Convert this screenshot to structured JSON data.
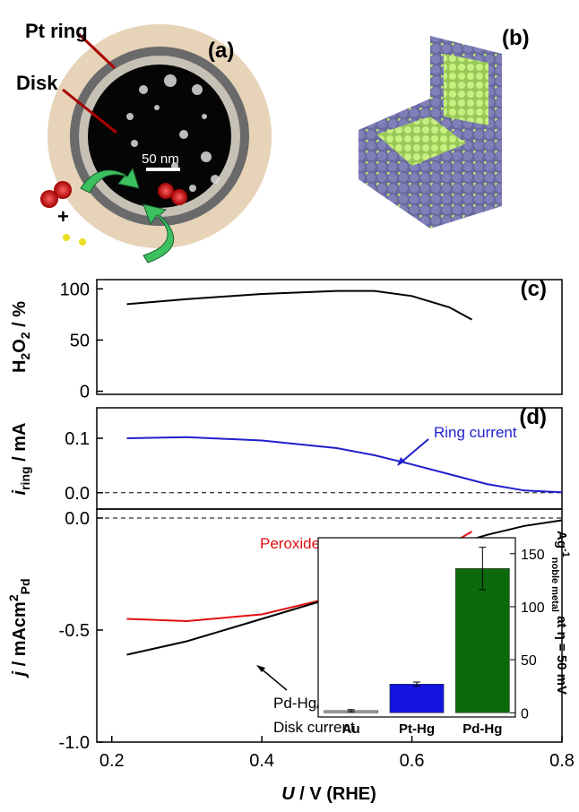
{
  "panel_a": {
    "ring_label": "Pt ring",
    "disk_label": "Disk",
    "scale_label": "50 nm",
    "plus": "+",
    "panel_label": "(a)"
  },
  "panel_b": {
    "panel_label": "(b)"
  },
  "chart_data": [
    {
      "type": "line",
      "panel_label": "(c)",
      "ylabel_parts": [
        "H",
        "2",
        "O",
        "2",
        " / %"
      ],
      "x": [
        0.22,
        0.3,
        0.4,
        0.5,
        0.55,
        0.6,
        0.65,
        0.68
      ],
      "series": [
        {
          "color": "#000000",
          "values": [
            85,
            90,
            95,
            98,
            98,
            93,
            82,
            70
          ]
        }
      ],
      "xlim": [
        0.18,
        0.8
      ],
      "ylim": [
        -3,
        109
      ],
      "yticks": [
        0,
        50,
        100
      ]
    },
    {
      "type": "line",
      "panel_label": "(d)",
      "ylabel_parts": [
        "i",
        "ring",
        " / mA"
      ],
      "annotation": "Ring current",
      "x": [
        0.22,
        0.3,
        0.4,
        0.5,
        0.55,
        0.6,
        0.65,
        0.7,
        0.75,
        0.8
      ],
      "series": [
        {
          "color": "#1f1fcc",
          "values": [
            0.1,
            0.102,
            0.096,
            0.082,
            0.069,
            0.052,
            0.034,
            0.016,
            0.004,
            0.001
          ]
        }
      ],
      "xlim": [
        0.18,
        0.8
      ],
      "ylim": [
        -0.03,
        0.156
      ],
      "yticks": [
        {
          "value": 0,
          "label": "0.0"
        },
        0.1
      ],
      "zero_line": "dashed"
    },
    {
      "type": "line",
      "ylabel_parts": [
        "j",
        " / mAcm",
        "2",
        "Pd"
      ],
      "xlabel_parts": [
        "U",
        " / V (RHE)"
      ],
      "annotations": [
        "Peroxide current",
        "Pd-Hg/C",
        "Disk current"
      ],
      "x": [
        0.22,
        0.3,
        0.4,
        0.5,
        0.55,
        0.6,
        0.65,
        0.68,
        0.7,
        0.75,
        0.8
      ],
      "series": [
        {
          "color": "#e01010",
          "values": [
            -0.45,
            -0.46,
            -0.43,
            -0.35,
            -0.29,
            -0.21,
            -0.12,
            -0.06,
            null,
            null,
            null
          ]
        },
        {
          "color": "#000000",
          "values": [
            -0.61,
            -0.55,
            -0.45,
            -0.35,
            -0.29,
            -0.21,
            -0.13,
            -0.095,
            -0.075,
            -0.035,
            -0.01
          ]
        }
      ],
      "xlim": [
        0.18,
        0.8
      ],
      "ylim": [
        -1.0,
        0.04
      ],
      "yticks": [
        {
          "value": -1,
          "label": "-1.0"
        },
        -0.5,
        {
          "value": 0,
          "label": "0.0"
        }
      ],
      "xticks": [
        0.2,
        0.4,
        0.6,
        0.8
      ],
      "zero_line": "dashed"
    },
    {
      "type": "bar",
      "categories": [
        "Au",
        "Pt-Hg",
        "Pd-Hg"
      ],
      "values": [
        2,
        27,
        136
      ],
      "errors": [
        1,
        2,
        20
      ],
      "colors": [
        "#9aa89a",
        "#1414e0",
        "#0c6a0c"
      ],
      "ylim": [
        -4,
        165
      ],
      "yticks": [
        0,
        50,
        100,
        150
      ],
      "ylabel_parts": [
        "Ag",
        "-1",
        "noble metal",
        " at η = 50 mV"
      ]
    }
  ]
}
